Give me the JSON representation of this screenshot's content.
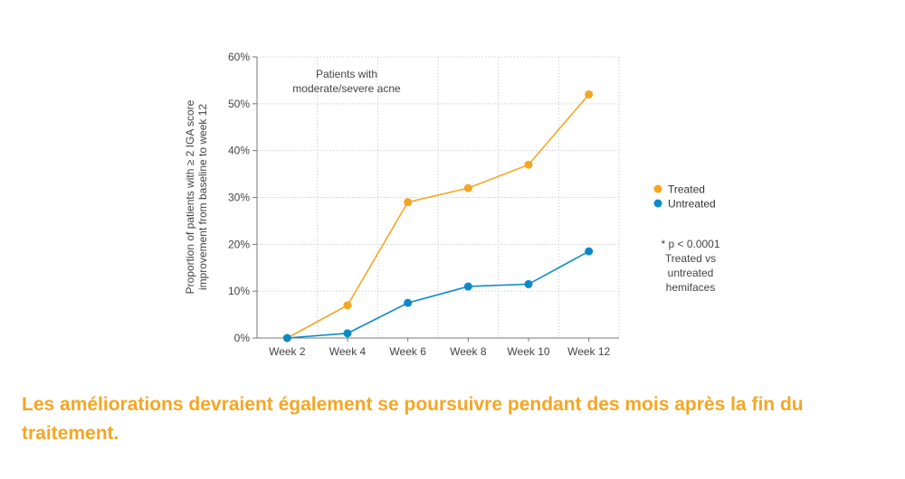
{
  "chart_data": {
    "type": "line",
    "categories": [
      "Week 2",
      "Week 4",
      "Week 6",
      "Week 8",
      "Week 10",
      "Week 12"
    ],
    "series": [
      {
        "name": "Treated",
        "values": [
          0,
          7,
          29,
          32,
          37,
          52
        ],
        "color": "#F5A623"
      },
      {
        "name": "Untreated",
        "values": [
          0,
          1,
          7.5,
          11,
          11.5,
          18.5
        ],
        "color": "#0B8AC9"
      }
    ],
    "ylabel_lines": [
      "Proportion of patients with ≥ 2 IGA score",
      "improvement from baseline to week 12"
    ],
    "ylim": [
      0,
      60
    ],
    "yticks": [
      "0%",
      "10%",
      "20%",
      "30%",
      "40%",
      "50%",
      "60%"
    ],
    "grid": true,
    "legend_position": "right",
    "annotation_lines": [
      "Patients with",
      "moderate/severe acne"
    ],
    "note_lines": [
      "* p < 0.0001",
      "Treated vs",
      "untreated",
      "hemifaces"
    ]
  },
  "caption": "Les améliorations devraient également se poursuivre pendant des mois après la fin du traitement.",
  "caption_color": "#F5A623"
}
